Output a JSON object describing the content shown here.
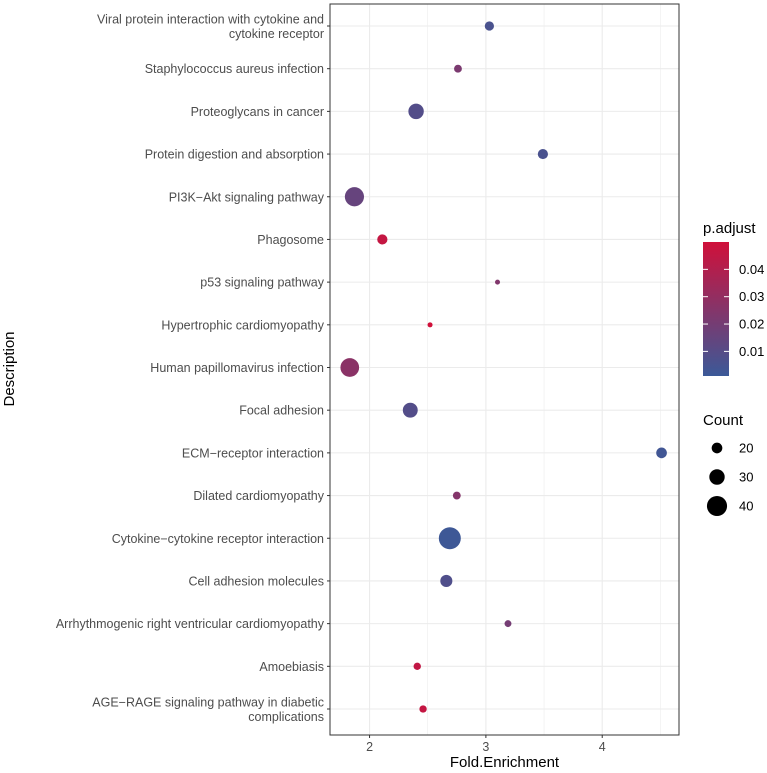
{
  "chart_data": {
    "type": "scatter",
    "xlabel": "Fold.Enrichment",
    "ylabel": "Description",
    "xlim": [
      1.66,
      4.66
    ],
    "x_ticks": [
      2,
      3,
      4
    ],
    "grid": true,
    "categories": [
      "AGE−RAGE signaling pathway in diabetic\ncomplications",
      "Amoebiasis",
      "Arrhythmogenic right ventricular cardiomyopathy",
      "Cell adhesion molecules",
      "Cytokine−cytokine receptor interaction",
      "Dilated cardiomyopathy",
      "ECM−receptor interaction",
      "Focal adhesion",
      "Human papillomavirus infection",
      "Hypertrophic cardiomyopathy",
      "p53 signaling pathway",
      "Phagosome",
      "PI3K−Akt signaling pathway",
      "Protein digestion and absorption",
      "Proteoglycans in cancer",
      "Staphylococcus aureus infection",
      "Viral protein interaction with cytokine and\ncytokine receptor"
    ],
    "points": [
      {
        "category": "AGE−RAGE signaling pathway in diabetic\ncomplications",
        "fold_enrichment": 2.46,
        "count": 13,
        "p_adjust": 0.046
      },
      {
        "category": "Amoebiasis",
        "fold_enrichment": 2.41,
        "count": 13,
        "p_adjust": 0.045
      },
      {
        "category": "Arrhythmogenic right ventricular cardiomyopathy",
        "fold_enrichment": 3.19,
        "count": 12,
        "p_adjust": 0.02
      },
      {
        "category": "Cell adhesion molecules",
        "fold_enrichment": 2.66,
        "count": 23,
        "p_adjust": 0.008
      },
      {
        "category": "Cytokine−cytokine receptor interaction",
        "fold_enrichment": 2.69,
        "count": 44,
        "p_adjust": 0.002
      },
      {
        "category": "Dilated cardiomyopathy",
        "fold_enrichment": 2.75,
        "count": 14,
        "p_adjust": 0.025
      },
      {
        "category": "ECM−receptor interaction",
        "fold_enrichment": 4.51,
        "count": 20,
        "p_adjust": 0.003
      },
      {
        "category": "Focal adhesion",
        "fold_enrichment": 2.35,
        "count": 29,
        "p_adjust": 0.009
      },
      {
        "category": "Human papillomavirus infection",
        "fold_enrichment": 1.83,
        "count": 37,
        "p_adjust": 0.027
      },
      {
        "category": "Hypertrophic cardiomyopathy",
        "fold_enrichment": 2.52,
        "count": 8,
        "p_adjust": 0.05
      },
      {
        "category": "p53 signaling pathway",
        "fold_enrichment": 3.1,
        "count": 8,
        "p_adjust": 0.024
      },
      {
        "category": "Phagosome",
        "fold_enrichment": 2.11,
        "count": 19,
        "p_adjust": 0.046
      },
      {
        "category": "PI3K−Akt signaling pathway",
        "fold_enrichment": 1.87,
        "count": 38,
        "p_adjust": 0.015
      },
      {
        "category": "Protein digestion and absorption",
        "fold_enrichment": 3.49,
        "count": 19,
        "p_adjust": 0.006
      },
      {
        "category": "Proteoglycans in cancer",
        "fold_enrichment": 2.4,
        "count": 30,
        "p_adjust": 0.009
      },
      {
        "category": "Staphylococcus aureus infection",
        "fold_enrichment": 2.76,
        "count": 14,
        "p_adjust": 0.022
      },
      {
        "category": "Viral protein interaction with cytokine and\ncytokine receptor",
        "fold_enrichment": 3.03,
        "count": 17,
        "p_adjust": 0.006
      }
    ],
    "legend_color": {
      "title": "p.adjust",
      "ticks": [
        0.01,
        0.02,
        0.03,
        0.04
      ],
      "tick_labels": [
        "0.01",
        "0.02",
        "0.03",
        "0.04"
      ],
      "range": [
        0.001,
        0.05
      ],
      "low_color": "#3B5998",
      "high_color": "#D0103A"
    },
    "legend_size": {
      "title": "Count",
      "values": [
        20,
        30,
        40
      ],
      "labels": [
        "20",
        "30",
        "40"
      ]
    }
  }
}
